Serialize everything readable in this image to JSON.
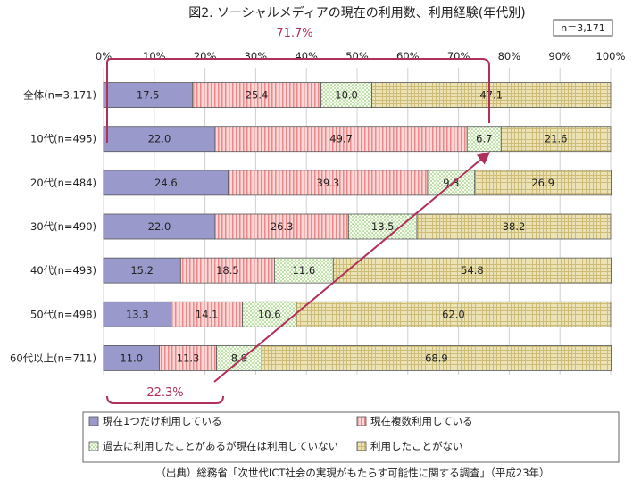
{
  "chart_data": {
    "type": "bar",
    "orientation": "horizontal",
    "stacked": true,
    "percent": true,
    "title": "図2. ソーシャルメディアの現在の利用数、利用経験(年代別)",
    "sample_note": "n＝3,171",
    "source": "（出典）総務省「次世代ICT社会の実現がもたらす可能性に関する調査」（平成23年）",
    "xlim": [
      0,
      100
    ],
    "x_ticks": [
      "0%",
      "10%",
      "20%",
      "30%",
      "40%",
      "50%",
      "60%",
      "70%",
      "80%",
      "90%",
      "100%"
    ],
    "grid": true,
    "legend_position": "bottom",
    "categories": [
      "全体(n=3,171)",
      "10代(n=495)",
      "20代(n=484)",
      "30代(n=490)",
      "40代(n=493)",
      "50代(n=498)",
      "60代以上(n=711)"
    ],
    "series": [
      {
        "name": "現在1つだけ利用している",
        "color": "#9999cc",
        "values": [
          17.5,
          22.0,
          24.6,
          22.0,
          15.2,
          13.3,
          11.0
        ]
      },
      {
        "name": "現在複数利用している",
        "color": "#ffc4c4",
        "values": [
          25.4,
          49.7,
          39.3,
          26.3,
          18.5,
          14.1,
          11.3
        ]
      },
      {
        "name": "過去に利用したことがあるが現在は利用していない",
        "color": "#eef8d8",
        "values": [
          10.0,
          6.7,
          9.3,
          13.5,
          11.6,
          10.6,
          8.9
        ]
      },
      {
        "name": "利用したことがない",
        "color": "#e6dcaa",
        "values": [
          47.1,
          21.6,
          26.9,
          38.2,
          54.8,
          62.0,
          68.9
        ]
      }
    ],
    "annotations": [
      {
        "text": "71.7%",
        "color": "#b0305a"
      },
      {
        "text": "22.3%",
        "color": "#b0305a"
      }
    ]
  }
}
